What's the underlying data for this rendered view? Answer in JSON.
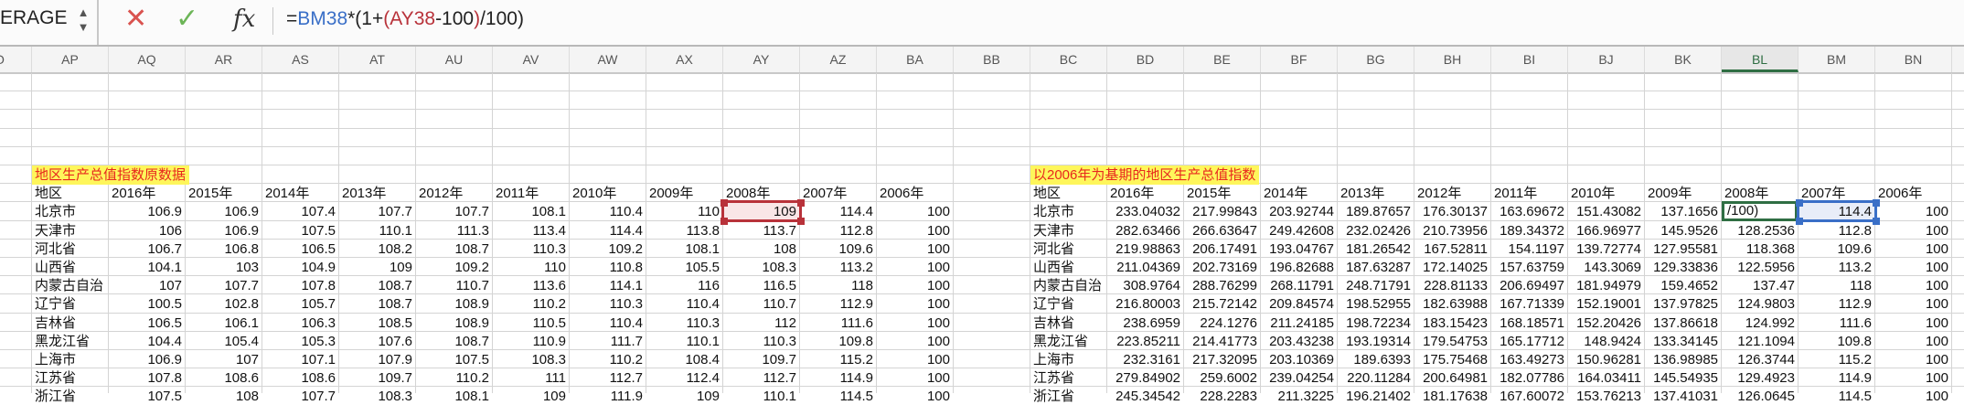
{
  "formula_bar": {
    "name_box": "ERAGE",
    "cancel_icon": "x-icon",
    "enter_icon": "check-icon",
    "fx_label": "fx",
    "formula_parts": [
      {
        "text": "=",
        "color": "#222222"
      },
      {
        "text": "BM38",
        "color": "#3a6fc7"
      },
      {
        "text": "*(1+",
        "color": "#222222"
      },
      {
        "text": "(",
        "color": "#b8323a"
      },
      {
        "text": "AY38",
        "color": "#b8323a"
      },
      {
        "text": "-100",
        "color": "#222222"
      },
      {
        "text": ")",
        "color": "#b8323a"
      },
      {
        "text": "/100)",
        "color": "#222222"
      }
    ]
  },
  "column_headers": [
    "O",
    "AP",
    "AQ",
    "AR",
    "AS",
    "AT",
    "AU",
    "AV",
    "AW",
    "AX",
    "AY",
    "AZ",
    "BA",
    "BB",
    "BC",
    "BD",
    "BE",
    "BF",
    "BG",
    "BH",
    "BI",
    "BJ",
    "BK",
    "BL",
    "BM",
    "BN"
  ],
  "selected_column": "BL",
  "editing_cell_text": "/100)",
  "colors": {
    "active": "#2f6e43",
    "ref_red": "#b8323a",
    "ref_blue": "#3a6fc7",
    "title_bg": "#fef65b",
    "title_text": "#e8281e"
  },
  "left_table": {
    "title": "地区生产总值指数原数据",
    "headers": [
      "地区",
      "2016年",
      "2015年",
      "2014年",
      "2013年",
      "2012年",
      "2011年",
      "2010年",
      "2009年",
      "2008年",
      "2007年",
      "2006年"
    ],
    "rows": [
      [
        "北京市",
        "106.9",
        "106.9",
        "107.4",
        "107.7",
        "107.7",
        "108.1",
        "110.4",
        "110",
        "109",
        "114.4",
        "100"
      ],
      [
        "天津市",
        "106",
        "106.9",
        "107.5",
        "110.1",
        "111.3",
        "113.4",
        "114.4",
        "113.8",
        "113.7",
        "112.8",
        "100"
      ],
      [
        "河北省",
        "106.7",
        "106.8",
        "106.5",
        "108.2",
        "108.7",
        "110.3",
        "109.2",
        "108.1",
        "108",
        "109.6",
        "100"
      ],
      [
        "山西省",
        "104.1",
        "103",
        "104.9",
        "109",
        "109.2",
        "110",
        "110.8",
        "105.5",
        "108.3",
        "113.2",
        "100"
      ],
      [
        "内蒙古自治",
        "107",
        "107.7",
        "107.8",
        "108.7",
        "110.7",
        "113.6",
        "114.1",
        "116",
        "116.5",
        "118",
        "100"
      ],
      [
        "辽宁省",
        "100.5",
        "102.8",
        "105.7",
        "108.7",
        "108.9",
        "110.2",
        "110.3",
        "110.4",
        "110.7",
        "112.9",
        "100"
      ],
      [
        "吉林省",
        "106.5",
        "106.1",
        "106.3",
        "108.5",
        "108.9",
        "110.5",
        "110.4",
        "110.3",
        "112",
        "111.6",
        "100"
      ],
      [
        "黑龙江省",
        "104.4",
        "105.4",
        "105.3",
        "107.6",
        "108.7",
        "110.9",
        "111.7",
        "110.1",
        "110.3",
        "109.8",
        "100"
      ],
      [
        "上海市",
        "106.9",
        "107",
        "107.1",
        "107.9",
        "107.5",
        "108.3",
        "110.2",
        "108.4",
        "109.7",
        "115.2",
        "100"
      ],
      [
        "江苏省",
        "107.8",
        "108.6",
        "108.6",
        "109.7",
        "110.2",
        "111",
        "112.7",
        "112.4",
        "112.7",
        "114.9",
        "100"
      ],
      [
        "浙江省",
        "107.5",
        "108",
        "107.7",
        "108.3",
        "108.1",
        "109",
        "111.9",
        "109",
        "110.1",
        "114.5",
        "100"
      ]
    ]
  },
  "right_table": {
    "title": "以2006年为基期的地区生产总值指数",
    "headers": [
      "地区",
      "2016年",
      "2015年",
      "2014年",
      "2013年",
      "2012年",
      "2011年",
      "2010年",
      "2009年",
      "2008年",
      "2007年",
      "2006年"
    ],
    "rows": [
      [
        "北京市",
        "233.04032",
        "217.99843",
        "203.92744",
        "189.87657",
        "176.30137",
        "163.69672",
        "151.43082",
        "137.1656",
        "",
        "114.4",
        "100"
      ],
      [
        "天津市",
        "282.63466",
        "266.63647",
        "249.42608",
        "232.02426",
        "210.73956",
        "189.34372",
        "166.96977",
        "145.9526",
        "128.2536",
        "112.8",
        "100"
      ],
      [
        "河北省",
        "219.98863",
        "206.17491",
        "193.04767",
        "181.26542",
        "167.52811",
        "154.1197",
        "139.72774",
        "127.95581",
        "118.368",
        "109.6",
        "100"
      ],
      [
        "山西省",
        "211.04369",
        "202.73169",
        "196.82688",
        "187.63287",
        "172.14025",
        "157.63759",
        "143.3069",
        "129.33836",
        "122.5956",
        "113.2",
        "100"
      ],
      [
        "内蒙古自治",
        "308.9764",
        "288.76299",
        "268.11791",
        "248.71791",
        "228.81133",
        "206.69497",
        "181.94979",
        "159.4652",
        "137.47",
        "118",
        "100"
      ],
      [
        "辽宁省",
        "216.80003",
        "215.72142",
        "209.84574",
        "198.52955",
        "182.63988",
        "167.71339",
        "152.19001",
        "137.97825",
        "124.9803",
        "112.9",
        "100"
      ],
      [
        "吉林省",
        "238.6959",
        "224.1276",
        "211.24185",
        "198.72234",
        "183.15423",
        "168.18571",
        "152.20426",
        "137.86618",
        "124.992",
        "111.6",
        "100"
      ],
      [
        "黑龙江省",
        "223.85211",
        "214.41773",
        "203.43238",
        "193.19314",
        "179.54753",
        "165.17712",
        "148.9424",
        "133.34145",
        "121.1094",
        "109.8",
        "100"
      ],
      [
        "上海市",
        "232.3161",
        "217.32095",
        "203.10369",
        "189.6393",
        "175.75468",
        "163.49273",
        "150.96281",
        "136.98985",
        "126.3744",
        "115.2",
        "100"
      ],
      [
        "江苏省",
        "279.84902",
        "259.6002",
        "239.04254",
        "220.11284",
        "200.64981",
        "182.07786",
        "164.03411",
        "145.54935",
        "129.4923",
        "114.9",
        "100"
      ],
      [
        "浙江省",
        "245.34542",
        "228.2283",
        "211.3225",
        "196.21402",
        "181.17638",
        "167.60072",
        "153.76213",
        "137.41031",
        "126.0645",
        "114.5",
        "100"
      ]
    ]
  }
}
